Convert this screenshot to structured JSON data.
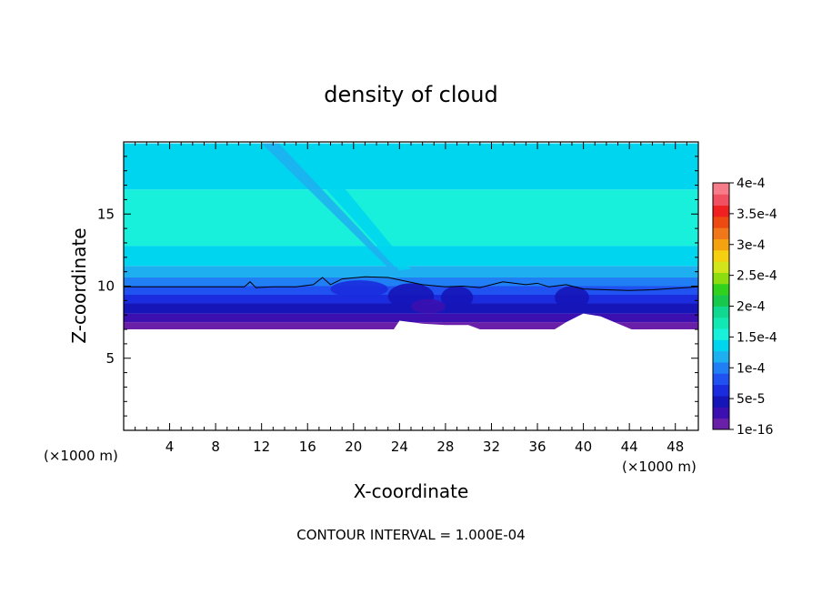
{
  "chart_data": {
    "type": "heatmap",
    "title": "density of cloud",
    "xlabel": "X-coordinate",
    "ylabel": "Z-coordinate",
    "x_unit": "(×1000 m)",
    "footer": "CONTOUR INTERVAL = 1.000E-04",
    "xlim": [
      0,
      50
    ],
    "ylim": [
      0,
      20
    ],
    "x_ticks": [
      4,
      8,
      12,
      16,
      20,
      24,
      28,
      32,
      36,
      40,
      44,
      48
    ],
    "y_ticks": [
      5,
      10,
      15
    ],
    "colorbar": {
      "tick_labels": [
        "4e-4",
        "3.5e-4",
        "3e-4",
        "2.5e-4",
        "2e-4",
        "1.5e-4",
        "1e-4",
        "5e-5",
        "1e-16"
      ],
      "tick_values": [
        0.0004,
        0.00035,
        0.0003,
        0.00025,
        0.0002,
        0.00015,
        0.0001,
        5e-05,
        1e-16
      ],
      "colors_bottom_to_top": [
        "#6a1fa8",
        "#3b0fb0",
        "#1515b8",
        "#1a2cde",
        "#1f52f0",
        "#207ff5",
        "#1eaff0",
        "#00d5f0",
        "#18f0dc",
        "#12e8b4",
        "#10d890",
        "#18c84c",
        "#30d21e",
        "#8cdc10",
        "#d2e41a",
        "#f5d010",
        "#f5a210",
        "#f0781a",
        "#ec4a10",
        "#f02020",
        "#f05060",
        "#f77c8a"
      ]
    },
    "layers": [
      {
        "z_bottom": 7.0,
        "z_top": 7.5,
        "color": "#6a1fa8"
      },
      {
        "z_bottom": 7.5,
        "z_top": 8.1,
        "color": "#3b0fb0"
      },
      {
        "z_bottom": 8.1,
        "z_top": 8.8,
        "color": "#1515b8"
      },
      {
        "z_bottom": 8.8,
        "z_top": 9.4,
        "color": "#1a2cde"
      },
      {
        "z_bottom": 9.4,
        "z_top": 10.0,
        "color": "#1f52f0"
      },
      {
        "z_bottom": 10.0,
        "z_top": 10.6,
        "color": "#207ff5"
      },
      {
        "z_bottom": 10.6,
        "z_top": 11.4,
        "color": "#1eaff0"
      },
      {
        "z_bottom": 11.4,
        "z_top": 12.8,
        "color": "#00d5f0"
      },
      {
        "z_bottom": 12.8,
        "z_top": 16.7,
        "color": "#18f0dc"
      },
      {
        "z_bottom": 16.7,
        "z_top": 19.9,
        "color": "#00d5f0"
      }
    ],
    "contour_line": [
      [
        0,
        9.95
      ],
      [
        10.5,
        9.95
      ],
      [
        11,
        10.3
      ],
      [
        11.5,
        9.9
      ],
      [
        13,
        9.95
      ],
      [
        15,
        9.95
      ],
      [
        16.5,
        10.1
      ],
      [
        17.3,
        10.6
      ],
      [
        18,
        10.1
      ],
      [
        19,
        10.5
      ],
      [
        21,
        10.65
      ],
      [
        23,
        10.6
      ],
      [
        24.5,
        10.35
      ],
      [
        26,
        10.1
      ],
      [
        28,
        9.95
      ],
      [
        29.5,
        10.0
      ],
      [
        31,
        9.9
      ],
      [
        33,
        10.3
      ],
      [
        35,
        10.1
      ],
      [
        36,
        10.2
      ],
      [
        37,
        9.95
      ],
      [
        38.5,
        10.1
      ],
      [
        40,
        9.8
      ],
      [
        42,
        9.75
      ],
      [
        44,
        9.7
      ],
      [
        46,
        9.75
      ],
      [
        48,
        9.85
      ],
      [
        50,
        9.95
      ]
    ],
    "cloud_base": [
      [
        0,
        7.0
      ],
      [
        23.5,
        7.0
      ],
      [
        24,
        7.6
      ],
      [
        26,
        7.4
      ],
      [
        28,
        7.3
      ],
      [
        30,
        7.3
      ],
      [
        31,
        7.0
      ],
      [
        37.5,
        7.0
      ],
      [
        38.5,
        7.5
      ],
      [
        40,
        8.1
      ],
      [
        41.5,
        7.9
      ],
      [
        43,
        7.4
      ],
      [
        44.5,
        6.9
      ],
      [
        46,
        7.0
      ],
      [
        50,
        7.0
      ]
    ],
    "features": [
      {
        "kind": "shear-plume",
        "color": "#1eaff0",
        "points": [
          [
            12,
            19.9
          ],
          [
            13.5,
            19.9
          ],
          [
            24,
            11.0
          ],
          [
            23.5,
            10.9
          ]
        ]
      },
      {
        "kind": "shear-plume",
        "color": "#00d5f0",
        "points": [
          [
            14,
            19.9
          ],
          [
            16,
            19.9
          ],
          [
            25,
            11.2
          ],
          [
            24,
            11.1
          ]
        ]
      },
      {
        "kind": "dark-cell",
        "color": "#1515b8",
        "cx": 25.0,
        "cz": 9.3,
        "rx": 2.0,
        "rz": 0.9
      },
      {
        "kind": "dark-cell",
        "color": "#1515b8",
        "cx": 29.0,
        "cz": 9.2,
        "rx": 1.4,
        "rz": 0.8
      },
      {
        "kind": "dark-cell",
        "color": "#1a2cde",
        "cx": 20.5,
        "cz": 9.8,
        "rx": 2.5,
        "rz": 0.6
      },
      {
        "kind": "dark-cell",
        "color": "#1515b8",
        "cx": 39.0,
        "cz": 9.2,
        "rx": 1.5,
        "rz": 0.8
      },
      {
        "kind": "dark-cell",
        "color": "#3b0fb0",
        "cx": 26.5,
        "cz": 8.6,
        "rx": 1.5,
        "rz": 0.5
      }
    ]
  }
}
